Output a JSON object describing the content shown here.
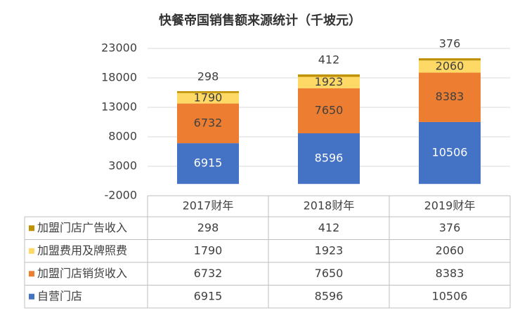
{
  "chart_data": {
    "type": "stacked_bar",
    "title": "快餐帝国销售额来源统计（千坡元）",
    "categories": [
      "2017财年",
      "2018财年",
      "2019财年"
    ],
    "series": [
      {
        "name": "自营门店",
        "color": "#4472c4",
        "values": [
          6915,
          8596,
          10506
        ]
      },
      {
        "name": "加盟门店销货收入",
        "color": "#ed7d31",
        "values": [
          6732,
          7650,
          8383
        ]
      },
      {
        "name": "加盟费用及牌照费",
        "color": "#ffd966",
        "values": [
          1790,
          1923,
          2060
        ]
      },
      {
        "name": "加盟门店广告收入",
        "color": "#bf9000",
        "values": [
          298,
          412,
          376
        ]
      }
    ],
    "ylim": [
      -2000,
      23000
    ],
    "yticks": [
      -2000,
      3000,
      8000,
      13000,
      18000,
      23000
    ],
    "grid": true
  }
}
